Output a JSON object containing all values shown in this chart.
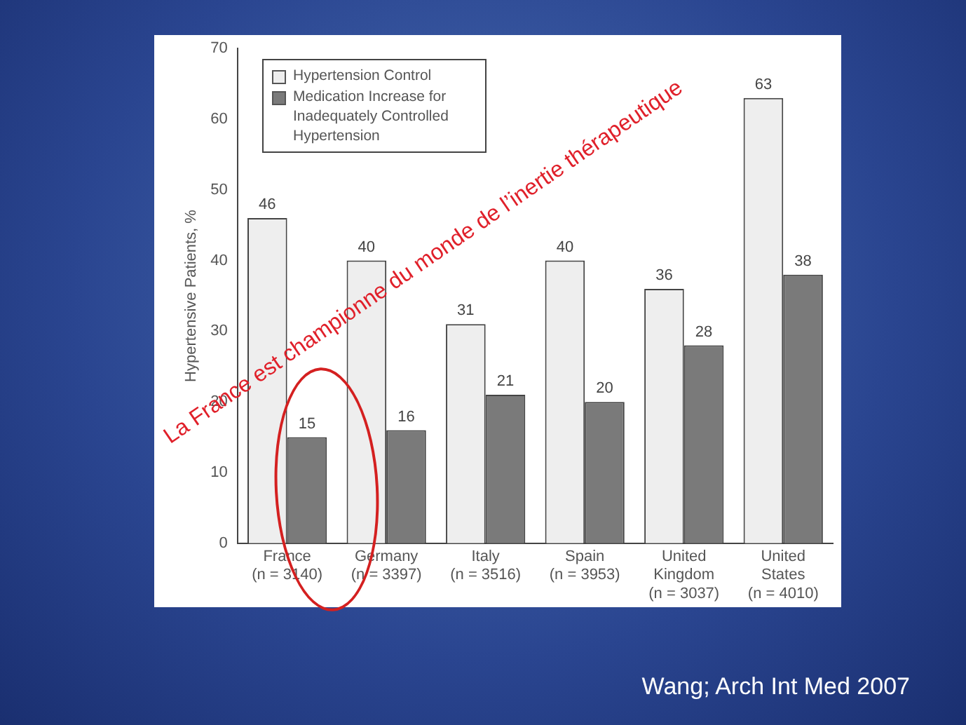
{
  "chart_data": {
    "type": "bar",
    "categories": [
      "France\n(n = 3140)",
      "Germany\n(n = 3397)",
      "Italy\n(n = 3516)",
      "Spain\n(n = 3953)",
      "United\nKingdom\n(n = 3037)",
      "United\nStates\n(n = 4010)"
    ],
    "series": [
      {
        "name": "Hypertension Control",
        "color": "#eeeeee",
        "values": [
          46,
          40,
          31,
          40,
          36,
          63
        ]
      },
      {
        "name": "Medication Increase for Inadequately Controlled Hypertension",
        "color": "#7a7a7a",
        "values": [
          15,
          16,
          21,
          20,
          28,
          38
        ]
      }
    ],
    "ylabel": "Hypertensive Patients, %",
    "ylim": [
      0,
      70
    ],
    "yticks": [
      0,
      10,
      20,
      30,
      40,
      50,
      60,
      70
    ],
    "data_labels": true,
    "legend": "top left",
    "grid": false,
    "annotations": [
      "La France est championne du monde de l’inertie thérapeutique",
      "Wang; Arch Int Med 2007"
    ]
  }
}
